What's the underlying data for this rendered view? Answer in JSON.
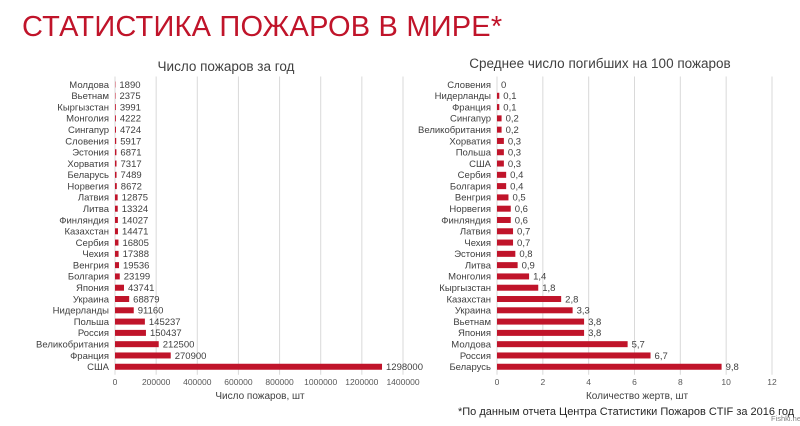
{
  "page": {
    "title": "СТАТИСТИКА ПОЖАРОВ В МИРЕ*",
    "footnote": "*По данным отчета Центра Статистики Пожаров CTIF за 2016 год",
    "watermark": "Fishki.net"
  },
  "colors": {
    "bar": "#c0142a",
    "title": "#c0142a"
  },
  "chart_data": [
    {
      "type": "bar",
      "orientation": "horizontal",
      "title": "Число пожаров за год",
      "xlabel": "Число пожаров, шт",
      "ylabel": "",
      "xlim": [
        0,
        1400000
      ],
      "xticks": [
        "0",
        "200000",
        "400000",
        "600000",
        "800000",
        "1000000",
        "1200000",
        "1400000"
      ],
      "grid": true,
      "categories": [
        "Молдова",
        "Вьетнам",
        "Кыргызстан",
        "Монголия",
        "Сингапур",
        "Словения",
        "Эстония",
        "Хорватия",
        "Беларусь",
        "Норвегия",
        "Латвия",
        "Литва",
        "Финляндия",
        "Казахстан",
        "Сербия",
        "Чехия",
        "Венгрия",
        "Болгария",
        "Япония",
        "Украина",
        "Нидерланды",
        "Польша",
        "Россия",
        "Великобритания",
        "Франция",
        "США"
      ],
      "values": [
        1890,
        2375,
        3991,
        4222,
        4724,
        5917,
        6871,
        7317,
        7489,
        8672,
        12875,
        13324,
        14027,
        14471,
        16805,
        17388,
        19536,
        23199,
        43741,
        68879,
        91160,
        145237,
        150437,
        212500,
        270900,
        1298000
      ],
      "labels": [
        "1890",
        "2375",
        "3991",
        "4222",
        "4724",
        "5917",
        "6871",
        "7317",
        "7489",
        "8672",
        "12875",
        "13324",
        "14027",
        "14471",
        "16805",
        "17388",
        "19536",
        "23199",
        "43741",
        "68879",
        "91160",
        "145237",
        "150437",
        "212500",
        "270900",
        "1298000"
      ]
    },
    {
      "type": "bar",
      "orientation": "horizontal",
      "title": "Среднее число погибших на 100 пожаров",
      "xlabel": "Количество жертв, шт",
      "ylabel": "",
      "xlim": [
        0,
        12
      ],
      "xticks": [
        "0",
        "2",
        "4",
        "6",
        "8",
        "10",
        "12"
      ],
      "grid": true,
      "categories": [
        "Словения",
        "Нидерланды",
        "Франция",
        "Сингапур",
        "Великобритания",
        "Хорватия",
        "Польша",
        "США",
        "Сербия",
        "Болгария",
        "Венгрия",
        "Норвегия",
        "Финляндия",
        "Латвия",
        "Чехия",
        "Эстония",
        "Литва",
        "Монголия",
        "Кыргызстан",
        "Казахстан",
        "Украина",
        "Вьетнам",
        "Япония",
        "Молдова",
        "Россия",
        "Беларусь"
      ],
      "values": [
        0,
        0.1,
        0.1,
        0.2,
        0.2,
        0.3,
        0.3,
        0.3,
        0.4,
        0.4,
        0.5,
        0.6,
        0.6,
        0.7,
        0.7,
        0.8,
        0.9,
        1.4,
        1.8,
        2.8,
        3.3,
        3.8,
        3.8,
        5.7,
        6.7,
        9.8
      ],
      "labels": [
        "0",
        "0,1",
        "0,1",
        "0,2",
        "0,2",
        "0,3",
        "0,3",
        "0,3",
        "0,4",
        "0,4",
        "0,5",
        "0,6",
        "0,6",
        "0,7",
        "0,7",
        "0,8",
        "0,9",
        "1,4",
        "1,8",
        "2,8",
        "3,3",
        "3,8",
        "3,8",
        "5,7",
        "6,7",
        "9,8"
      ]
    }
  ]
}
